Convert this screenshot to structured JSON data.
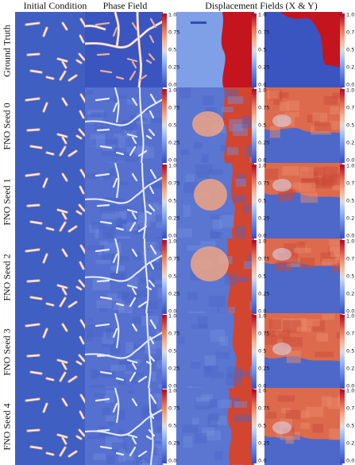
{
  "columns": [
    "Initial Condition",
    "Phase Field",
    "Displacement Fields (X & Y)"
  ],
  "rows": [
    "Ground Truth",
    "FNO Seed 0",
    "FNO Seed 1",
    "FNO Seed 2",
    "FNO Seed 3",
    "FNO Seed 4"
  ],
  "colorbar": {
    "ticks": [
      "1.0",
      "0.75",
      "0.5",
      "0.25",
      "0.0"
    ],
    "tick_values": [
      1.0,
      0.75,
      0.5,
      0.25,
      0.0
    ],
    "colormap": [
      "#3a4cc0",
      "#b40426"
    ]
  },
  "colors": {
    "low": "#3f5fc2",
    "high": "#c8202c",
    "crack": "#f2d3c0"
  }
}
